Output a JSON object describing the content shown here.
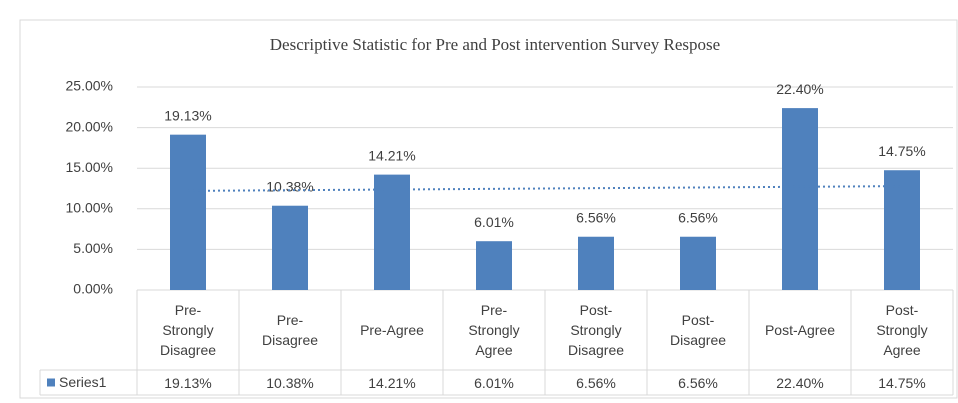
{
  "chart_data": {
    "type": "bar",
    "title": "Descriptive Statistic for Pre and Post intervention Survey Respose",
    "categories": [
      "Pre-Strongly Disagree",
      "Pre-Disagree",
      "Pre-Agree",
      "Pre-Strongly Agree",
      "Post-Strongly Disagree",
      "Post-Disagree",
      "Post-Agree",
      "Post-Strongly Agree"
    ],
    "series": [
      {
        "name": "Series1",
        "color": "#4f81bd",
        "values": [
          19.13,
          10.38,
          14.21,
          6.01,
          6.56,
          6.56,
          22.4,
          14.75
        ],
        "value_labels": [
          "19.13%",
          "10.38%",
          "14.21%",
          "6.01%",
          "6.56%",
          "6.56%",
          "22.40%",
          "14.75%"
        ]
      }
    ],
    "ylim": [
      0,
      25
    ],
    "yticks": [
      {
        "value": 0,
        "label": "0.00%"
      },
      {
        "value": 5,
        "label": "5.00%"
      },
      {
        "value": 10,
        "label": "10.00%"
      },
      {
        "value": 15,
        "label": "15.00%"
      },
      {
        "value": 20,
        "label": "20.00%"
      },
      {
        "value": 25,
        "label": "25.00%"
      }
    ],
    "grid": true,
    "trendline": true,
    "data_table": true
  }
}
